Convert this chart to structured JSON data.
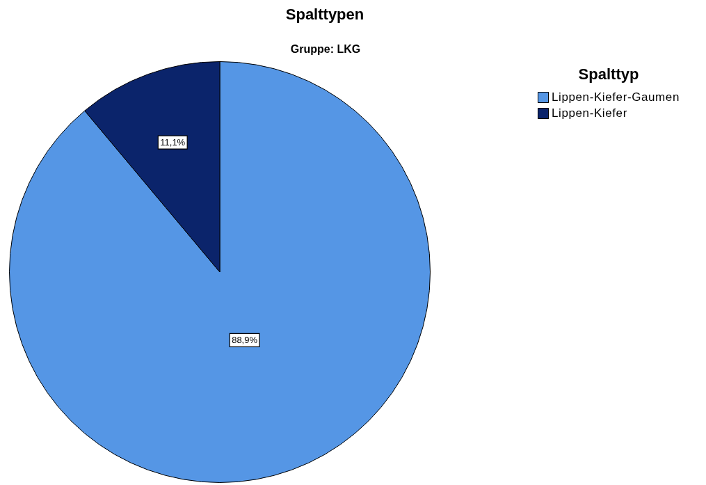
{
  "chart_data": {
    "type": "pie",
    "title": "Spalttypen",
    "subtitle": "Gruppe: LKG",
    "legend_title": "Spalttyp",
    "legend": "top right",
    "categories": [
      "Lippen-Kiefer-Gaumen",
      "Lippen-Kiefer"
    ],
    "values": [
      88.9,
      11.1
    ],
    "colors": [
      "#5596e5",
      "#0b246b"
    ],
    "value_labels": [
      "88,9%",
      "11,1%"
    ]
  }
}
